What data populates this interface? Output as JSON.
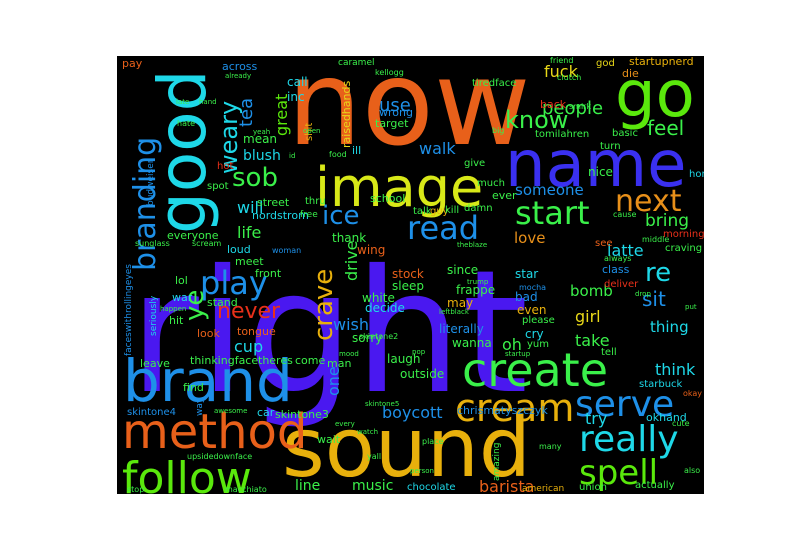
{
  "cloud": {
    "background": "#000000",
    "words": [
      {
        "text": "right",
        "color": "#4a18f0"
      },
      {
        "text": "now",
        "color": "#e8601a"
      },
      {
        "text": "sound",
        "color": "#e8b00c"
      },
      {
        "text": "good",
        "color": "#1ed8e8"
      },
      {
        "text": "name",
        "color": "#3a30f0"
      },
      {
        "text": "image",
        "color": "#d8e818"
      },
      {
        "text": "go",
        "color": "#5ae80c"
      },
      {
        "text": "brand",
        "color": "#1e90e8"
      },
      {
        "text": "method",
        "color": "#e8601a"
      },
      {
        "text": "follow",
        "color": "#5ae80c"
      },
      {
        "text": "create",
        "color": "#3af04a"
      },
      {
        "text": "cream",
        "color": "#e8b00c"
      },
      {
        "text": "serve",
        "color": "#1e90e8"
      },
      {
        "text": "really",
        "color": "#1ed8e8"
      },
      {
        "text": "spell",
        "color": "#5ae80c"
      },
      {
        "text": "branding",
        "color": "#1e90e8"
      },
      {
        "text": "start",
        "color": "#3af04a"
      },
      {
        "text": "next",
        "color": "#e8901a"
      },
      {
        "text": "read",
        "color": "#1e90e8"
      },
      {
        "text": "ice",
        "color": "#1e90e8"
      },
      {
        "text": "sob",
        "color": "#3af04a"
      },
      {
        "text": "play",
        "color": "#1e90e8"
      },
      {
        "text": "know",
        "color": "#3af04a"
      },
      {
        "text": "crave",
        "color": "#e8b00c"
      },
      {
        "text": "weary",
        "color": "#1ed8e8"
      },
      {
        "text": "ye",
        "color": "#3af04a"
      },
      {
        "text": "never",
        "color": "#e8301a"
      },
      {
        "text": "re",
        "color": "#1ed8e8"
      },
      {
        "text": "sit",
        "color": "#1e90e8"
      },
      {
        "text": "feel",
        "color": "#3af04a"
      },
      {
        "text": "people",
        "color": "#3af04a"
      },
      {
        "text": "fuck",
        "color": "#e8d818"
      },
      {
        "text": "tea",
        "color": "#1e90e8"
      },
      {
        "text": "use",
        "color": "#1e90e8"
      },
      {
        "text": "walk",
        "color": "#1e90e8"
      },
      {
        "text": "bring",
        "color": "#3af04a"
      },
      {
        "text": "latte",
        "color": "#1ed8e8"
      },
      {
        "text": "love",
        "color": "#e8901a"
      },
      {
        "text": "someone",
        "color": "#1e90e8"
      },
      {
        "text": "life",
        "color": "#3af04a"
      },
      {
        "text": "will",
        "color": "#1ed8e8"
      },
      {
        "text": "drive",
        "color": "#3af04a"
      },
      {
        "text": "wish",
        "color": "#1e90e8"
      },
      {
        "text": "cup",
        "color": "#1ed8e8"
      },
      {
        "text": "oh",
        "color": "#3af04a"
      },
      {
        "text": "girl",
        "color": "#e8d818"
      },
      {
        "text": "take",
        "color": "#3af04a"
      },
      {
        "text": "think",
        "color": "#1ed8e8"
      },
      {
        "text": "thing",
        "color": "#1ed8e8"
      },
      {
        "text": "bomb",
        "color": "#3af04a"
      },
      {
        "text": "boycott",
        "color": "#1e90e8"
      },
      {
        "text": "barista",
        "color": "#e8601a"
      },
      {
        "text": "try",
        "color": "#1ed8e8"
      },
      {
        "text": "line",
        "color": "#3af04a"
      },
      {
        "text": "music",
        "color": "#3af04a"
      },
      {
        "text": "one",
        "color": "#1e90e8"
      },
      {
        "text": "great",
        "color": "#5ae80c"
      },
      {
        "text": "blush",
        "color": "#1ed8e8"
      },
      {
        "text": "mean",
        "color": "#3af04a"
      },
      {
        "text": "inc",
        "color": "#1ed8e8"
      },
      {
        "text": "call",
        "color": "#1ed8e8"
      },
      {
        "text": "across",
        "color": "#1e90e8"
      },
      {
        "text": "pay",
        "color": "#e8601a"
      },
      {
        "text": "caramel",
        "color": "#3af04a"
      },
      {
        "text": "kellogg",
        "color": "#3af04a"
      },
      {
        "text": "raisedhands",
        "color": "#e8d818"
      },
      {
        "text": "wrong",
        "color": "#1e90e8"
      },
      {
        "text": "target",
        "color": "#3af04a"
      },
      {
        "text": "ill",
        "color": "#1ed8e8"
      },
      {
        "text": "food",
        "color": "#3af04a"
      },
      {
        "text": "shit",
        "color": "#e8b00c"
      },
      {
        "text": "nice",
        "color": "#3af04a"
      },
      {
        "text": "tomilahren",
        "color": "#3af04a"
      },
      {
        "text": "startupnerd",
        "color": "#e8b00c"
      },
      {
        "text": "god",
        "color": "#e8d818"
      },
      {
        "text": "die",
        "color": "#e8901a"
      },
      {
        "text": "back",
        "color": "#e8301a"
      },
      {
        "text": "smirk",
        "color": "#3af04a"
      },
      {
        "text": "basic",
        "color": "#3af04a"
      },
      {
        "text": "home",
        "color": "#1ed8e8"
      },
      {
        "text": "morning",
        "color": "#e8301a"
      },
      {
        "text": "craving",
        "color": "#3af04a"
      },
      {
        "text": "middle",
        "color": "#3af04a"
      },
      {
        "text": "class",
        "color": "#1e90e8"
      },
      {
        "text": "deliver",
        "color": "#e8301a"
      },
      {
        "text": "even",
        "color": "#e8b00c"
      },
      {
        "text": "please",
        "color": "#3af04a"
      },
      {
        "text": "bad",
        "color": "#1e90e8"
      },
      {
        "text": "star",
        "color": "#1ed8e8"
      },
      {
        "text": "mocha",
        "color": "#1e90e8"
      },
      {
        "text": "stock",
        "color": "#e8601a"
      },
      {
        "text": "frappe",
        "color": "#3af04a"
      },
      {
        "text": "literally",
        "color": "#1e90e8"
      },
      {
        "text": "cry",
        "color": "#1ed8e8"
      },
      {
        "text": "yum",
        "color": "#3af04a"
      },
      {
        "text": "wanna",
        "color": "#3af04a"
      },
      {
        "text": "laugh",
        "color": "#3af04a"
      },
      {
        "text": "outside",
        "color": "#3af04a"
      },
      {
        "text": "since",
        "color": "#3af04a"
      },
      {
        "text": "may",
        "color": "#e8b00c"
      },
      {
        "text": "sleep",
        "color": "#3af04a"
      },
      {
        "text": "white",
        "color": "#3af04a"
      },
      {
        "text": "decide",
        "color": "#1ed8e8"
      },
      {
        "text": "sorry",
        "color": "#3af04a"
      },
      {
        "text": "thank",
        "color": "#3af04a"
      },
      {
        "text": "wing",
        "color": "#e8601a"
      },
      {
        "text": "school",
        "color": "#3af04a"
      },
      {
        "text": "street",
        "color": "#3af04a"
      },
      {
        "text": "nordstrom",
        "color": "#1ed8e8"
      },
      {
        "text": "everyone",
        "color": "#3af04a"
      },
      {
        "text": "loud",
        "color": "#1ed8e8"
      },
      {
        "text": "meet",
        "color": "#3af04a"
      },
      {
        "text": "woman",
        "color": "#1e90e8"
      },
      {
        "text": "front",
        "color": "#3af04a"
      },
      {
        "text": "stand",
        "color": "#3af04a"
      },
      {
        "text": "war",
        "color": "#1ed8e8"
      },
      {
        "text": "lol",
        "color": "#3af04a"
      },
      {
        "text": "hit",
        "color": "#3af04a"
      },
      {
        "text": "look",
        "color": "#e8601a"
      },
      {
        "text": "tongue",
        "color": "#e8601a"
      },
      {
        "text": "thinkingface",
        "color": "#3af04a"
      },
      {
        "text": "theres",
        "color": "#3af04a"
      },
      {
        "text": "come",
        "color": "#3af04a"
      },
      {
        "text": "leave",
        "color": "#3af04a"
      },
      {
        "text": "find",
        "color": "#3af04a"
      },
      {
        "text": "man",
        "color": "#3af04a"
      },
      {
        "text": "skintone3",
        "color": "#3af04a"
      },
      {
        "text": "chrismatyszczyk",
        "color": "#1e90e8"
      },
      {
        "text": "car",
        "color": "#1ed8e8"
      },
      {
        "text": "skintone4",
        "color": "#1e90e8"
      },
      {
        "text": "wait",
        "color": "#3af04a"
      },
      {
        "text": "chocolate",
        "color": "#1ed8e8"
      },
      {
        "text": "american",
        "color": "#e8b00c"
      },
      {
        "text": "union",
        "color": "#3af04a"
      },
      {
        "text": "actually",
        "color": "#3af04a"
      },
      {
        "text": "okhand",
        "color": "#1ed8e8"
      },
      {
        "text": "starbuck",
        "color": "#1ed8e8"
      },
      {
        "text": "tell",
        "color": "#3af04a"
      },
      {
        "text": "amazing",
        "color": "#3af04a"
      },
      {
        "text": "place",
        "color": "#3af04a"
      },
      {
        "text": "yall",
        "color": "#3af04a"
      },
      {
        "text": "upsidedownface",
        "color": "#3af04a"
      },
      {
        "text": "macchiato",
        "color": "#3af04a"
      },
      {
        "text": "stop",
        "color": "#3af04a"
      },
      {
        "text": "sunglass",
        "color": "#3af04a"
      },
      {
        "text": "scream",
        "color": "#3af04a"
      },
      {
        "text": "faceswithrollingeyes",
        "color": "#1e90e8"
      },
      {
        "text": "seriously",
        "color": "#1ed8e8"
      },
      {
        "text": "budweiser",
        "color": "#1e90e8"
      },
      {
        "text": "spot",
        "color": "#3af04a"
      },
      {
        "text": "hot",
        "color": "#e8301a"
      },
      {
        "text": "hate",
        "color": "#3af04a"
      },
      {
        "text": "skintone2",
        "color": "#3af04a"
      },
      {
        "text": "guy",
        "color": "#e8b00c"
      },
      {
        "text": "talk",
        "color": "#3af04a"
      },
      {
        "text": "kill",
        "color": "#3af04a"
      },
      {
        "text": "damn",
        "color": "#3af04a"
      },
      {
        "text": "ever",
        "color": "#3af04a"
      },
      {
        "text": "much",
        "color": "#3af04a"
      },
      {
        "text": "give",
        "color": "#3af04a"
      },
      {
        "text": "thru",
        "color": "#3af04a"
      },
      {
        "text": "free",
        "color": "#3af04a"
      },
      {
        "text": "tiredface",
        "color": "#3af04a"
      },
      {
        "text": "big",
        "color": "#3af04a"
      },
      {
        "text": "friend",
        "color": "#3af04a"
      },
      {
        "text": "clutch",
        "color": "#3af04a"
      },
      {
        "text": "turn",
        "color": "#3af04a"
      },
      {
        "text": "cause",
        "color": "#3af04a"
      },
      {
        "text": "always",
        "color": "#3af04a"
      },
      {
        "text": "see",
        "color": "#e8601a"
      },
      {
        "text": "okay",
        "color": "#e8601a"
      },
      {
        "text": "cute",
        "color": "#3af04a"
      },
      {
        "text": "also",
        "color": "#3af04a"
      },
      {
        "text": "many",
        "color": "#3af04a"
      },
      {
        "text": "theblaze",
        "color": "#3af04a"
      },
      {
        "text": "trump",
        "color": "#3af04a"
      },
      {
        "text": "leftblack",
        "color": "#3af04a"
      },
      {
        "text": "startup",
        "color": "#3af04a"
      },
      {
        "text": "pop",
        "color": "#3af04a"
      },
      {
        "text": "mood",
        "color": "#3af04a"
      },
      {
        "text": "watch",
        "color": "#3af04a"
      },
      {
        "text": "person",
        "color": "#3af04a"
      },
      {
        "text": "awesome",
        "color": "#3af04a"
      },
      {
        "text": "already",
        "color": "#3af04a"
      },
      {
        "text": "happen",
        "color": "#3af04a"
      },
      {
        "text": "yeah",
        "color": "#3af04a"
      },
      {
        "text": "open",
        "color": "#3af04a"
      },
      {
        "text": "id",
        "color": "#3af04a"
      },
      {
        "text": "drop",
        "color": "#3af04a"
      },
      {
        "text": "hand",
        "color": "#3af04a"
      },
      {
        "text": "late",
        "color": "#3af04a"
      },
      {
        "text": "put",
        "color": "#3af04a"
      },
      {
        "text": "every",
        "color": "#3af04a"
      },
      {
        "text": "skintone5",
        "color": "#3af04a"
      },
      {
        "text": "way",
        "color": "#1e90e8"
      }
    ]
  }
}
